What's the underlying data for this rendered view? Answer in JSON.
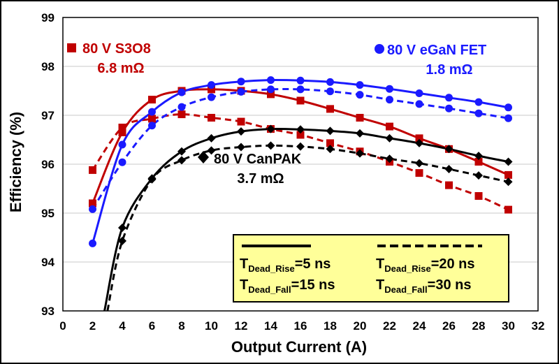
{
  "chart_data": {
    "type": "line",
    "xlabel": "Output Current (A)",
    "ylabel": "Efficiency (%)",
    "xlim": [
      0,
      32
    ],
    "ylim": [
      93,
      99
    ],
    "x_ticks": [
      0,
      2,
      4,
      6,
      8,
      10,
      12,
      14,
      16,
      18,
      20,
      22,
      24,
      26,
      28,
      30,
      32
    ],
    "y_ticks": [
      93,
      94,
      95,
      96,
      97,
      98,
      99
    ],
    "grid": "horizontal",
    "annotations": [
      {
        "id": "s308",
        "line1": "80 V S3O8",
        "line2": "6.8 mΩ",
        "color": "#c00000",
        "marker": "square"
      },
      {
        "id": "egan",
        "line1": "80 V eGaN FET",
        "line2": "1.8 mΩ",
        "color": "#1a1aff",
        "marker": "circle"
      },
      {
        "id": "canpak",
        "line1": "80 V CanPAK",
        "line2": "3.7 mΩ",
        "color": "#000000",
        "marker": "diamond"
      }
    ],
    "legend": {
      "placement": "bottom-right",
      "background": "#ffff99",
      "solid": {
        "rise_main": "T",
        "rise_sub": "Dead_Rise",
        "rise_val": "=5 ns",
        "fall_main": "T",
        "fall_sub": "Dead_Fall",
        "fall_val": "=15 ns"
      },
      "dashed": {
        "rise_main": "T",
        "rise_sub": "Dead_Rise",
        "rise_val": "=20 ns",
        "fall_main": "T",
        "fall_sub": "Dead_Fall",
        "fall_val": "=30 ns"
      }
    },
    "series": [
      {
        "device": "s308",
        "style": "solid",
        "color": "#c00000",
        "marker": "square",
        "x": [
          2,
          4,
          6,
          8,
          10,
          12,
          14,
          16,
          18,
          20,
          22,
          24,
          26,
          28,
          30
        ],
        "y": [
          95.2,
          96.65,
          97.32,
          97.5,
          97.53,
          97.5,
          97.43,
          97.3,
          97.13,
          96.95,
          96.77,
          96.53,
          96.31,
          96.05,
          95.78
        ]
      },
      {
        "device": "s308",
        "style": "dashed",
        "color": "#c00000",
        "marker": "square",
        "x": [
          2,
          4,
          6,
          8,
          10,
          12,
          14,
          16,
          18,
          20,
          22,
          24,
          26,
          28,
          30
        ],
        "y": [
          95.88,
          96.75,
          96.93,
          97.02,
          96.95,
          96.87,
          96.72,
          96.6,
          96.43,
          96.26,
          96.05,
          95.82,
          95.57,
          95.35,
          95.07
        ]
      },
      {
        "device": "egan",
        "style": "solid",
        "color": "#1a1aff",
        "marker": "circle",
        "x": [
          2,
          4,
          6,
          8,
          10,
          12,
          14,
          16,
          18,
          20,
          22,
          24,
          26,
          28,
          30
        ],
        "y": [
          94.38,
          96.4,
          97.07,
          97.47,
          97.62,
          97.69,
          97.72,
          97.71,
          97.68,
          97.62,
          97.54,
          97.45,
          97.36,
          97.27,
          97.16
        ]
      },
      {
        "device": "egan",
        "style": "dashed",
        "color": "#1a1aff",
        "marker": "circle",
        "x": [
          2,
          4,
          6,
          8,
          10,
          12,
          14,
          16,
          18,
          20,
          22,
          24,
          26,
          28,
          30
        ],
        "y": [
          95.08,
          96.04,
          96.79,
          97.17,
          97.37,
          97.48,
          97.53,
          97.53,
          97.49,
          97.42,
          97.32,
          97.23,
          97.14,
          97.04,
          96.94
        ]
      },
      {
        "device": "canpak",
        "style": "solid",
        "color": "#000000",
        "marker": "diamond",
        "x": [
          2.8,
          4,
          6,
          8,
          10,
          12,
          14,
          16,
          18,
          20,
          22,
          24,
          26,
          28,
          30
        ],
        "y": [
          93,
          94.7,
          95.71,
          96.26,
          96.53,
          96.67,
          96.72,
          96.71,
          96.68,
          96.63,
          96.53,
          96.43,
          96.31,
          96.17,
          96.05
        ]
      },
      {
        "device": "canpak",
        "style": "dashed",
        "color": "#000000",
        "marker": "diamond",
        "x": [
          3,
          4,
          6,
          8,
          10,
          12,
          14,
          16,
          18,
          20,
          22,
          24,
          26,
          28,
          30
        ],
        "y": [
          93,
          94.43,
          95.69,
          96.08,
          96.28,
          96.35,
          96.38,
          96.36,
          96.31,
          96.22,
          96.11,
          96.02,
          95.9,
          95.77,
          95.64
        ]
      }
    ]
  }
}
